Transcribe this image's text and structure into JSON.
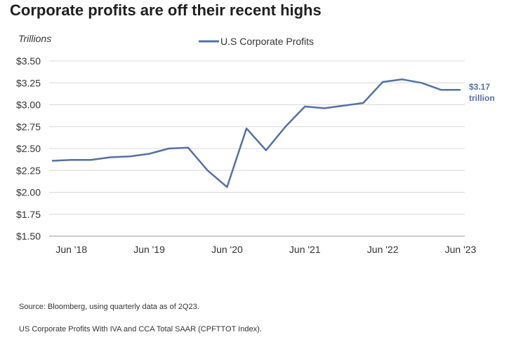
{
  "title": "Corporate profits are off their recent highs",
  "footnotes": {
    "source": "Source: Bloomberg, using quarterly data as of 2Q23.",
    "series_note": "US Corporate Profits With IVA and CCA Total SAAR (CPFTTOT Index)."
  },
  "chart_data": {
    "type": "line",
    "ylabel": "Trillions",
    "ylim": [
      1.5,
      3.5
    ],
    "yticks": [
      1.5,
      1.75,
      2.0,
      2.25,
      2.5,
      2.75,
      3.0,
      3.25,
      3.5
    ],
    "ytick_labels": [
      "$1.50",
      "$1.75",
      "$2.00",
      "$2.25",
      "$2.50",
      "$2.75",
      "$3.00",
      "$3.25",
      "$3.50"
    ],
    "xticks": [
      "Jun '18",
      "Jun '19",
      "Jun '20",
      "Jun '21",
      "Jun '22",
      "Jun '23"
    ],
    "grid": true,
    "legend": "top-center",
    "series": [
      {
        "name": "U.S Corporate Profits",
        "color": "#5470a8",
        "x": [
          "Q1 2018",
          "Q2 2018",
          "Q3 2018",
          "Q4 2018",
          "Q1 2019",
          "Q2 2019",
          "Q3 2019",
          "Q4 2019",
          "Q1 2020",
          "Q2 2020",
          "Q3 2020",
          "Q4 2020",
          "Q1 2021",
          "Q2 2021",
          "Q3 2021",
          "Q4 2021",
          "Q1 2022",
          "Q2 2022",
          "Q3 2022",
          "Q4 2022",
          "Q1 2023",
          "Q2 2023"
        ],
        "values": [
          2.36,
          2.37,
          2.37,
          2.4,
          2.41,
          2.44,
          2.5,
          2.51,
          2.25,
          2.06,
          2.73,
          2.48,
          2.75,
          2.98,
          2.96,
          2.99,
          3.02,
          3.26,
          3.29,
          3.25,
          3.17,
          3.17
        ]
      }
    ],
    "annotation": {
      "line1": "$3.17",
      "line2": "trillion"
    }
  }
}
